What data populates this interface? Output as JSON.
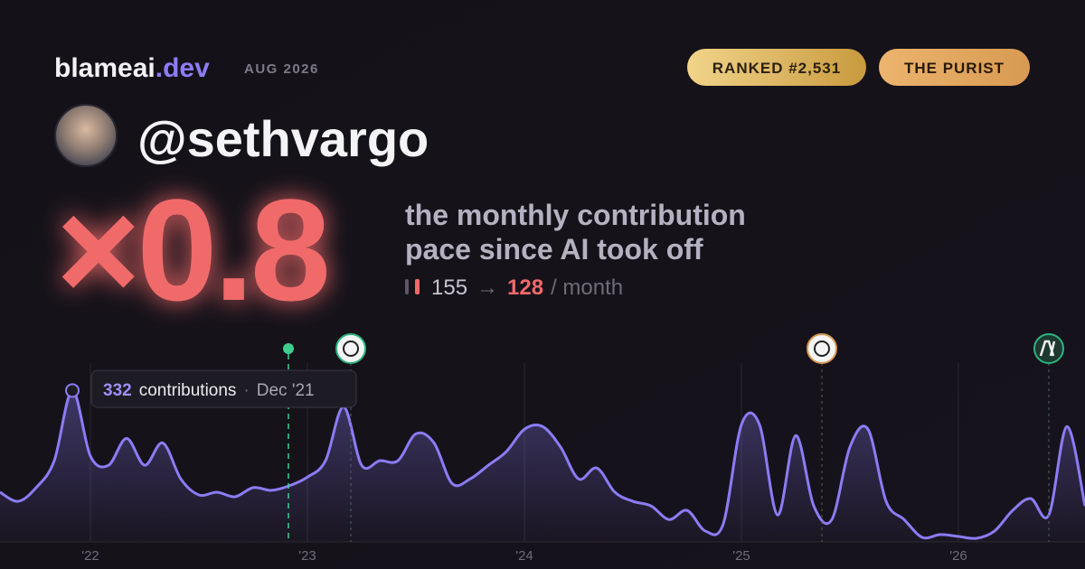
{
  "header": {
    "brand": "blameai",
    "brand_suffix": ".dev",
    "date": "AUG 2026",
    "badges": [
      "RANKED #2,531",
      "THE PURIST"
    ],
    "handle": "@sethvargo"
  },
  "headline": {
    "multiplier": "×0.8",
    "description": [
      "the monthly contribution",
      "pace since AI took off"
    ],
    "before": "155",
    "arrow": "→",
    "after": "128",
    "unit": "/ month"
  },
  "tooltip": {
    "value": "332",
    "label": "contributions",
    "separator": "·",
    "date": "Dec '21"
  },
  "chart_data": {
    "type": "area",
    "categories": [
      null,
      null,
      null,
      null,
      null,
      "'22",
      null,
      null,
      null,
      null,
      null,
      null,
      null,
      null,
      null,
      null,
      null,
      "'23",
      null,
      null,
      null,
      null,
      null,
      null,
      null,
      null,
      null,
      null,
      null,
      "'24",
      null,
      null,
      null,
      null,
      null,
      null,
      null,
      null,
      null,
      null,
      null,
      "'25",
      null,
      null,
      null,
      null,
      null,
      null,
      null,
      null,
      null,
      null,
      null,
      "'26",
      null,
      null,
      null,
      null,
      null,
      null,
      null
    ],
    "series": [
      {
        "name": "contributions",
        "color": "#8b7cf6",
        "values": [
          109,
          89,
          119,
          178,
          332,
          188,
          168,
          227,
          168,
          217,
          138,
          103,
          109,
          99,
          119,
          113,
          123,
          142,
          178,
          296,
          168,
          178,
          178,
          237,
          217,
          128,
          138,
          168,
          198,
          247,
          253,
          208,
          138,
          162,
          109,
          89,
          79,
          49,
          69,
          24,
          40,
          257,
          257,
          59,
          233,
          79,
          49,
          208,
          247,
          89,
          49,
          10,
          16,
          12,
          8,
          24,
          69,
          95,
          59,
          253,
          79
        ]
      }
    ],
    "ylim": [
      0,
      400
    ]
  }
}
